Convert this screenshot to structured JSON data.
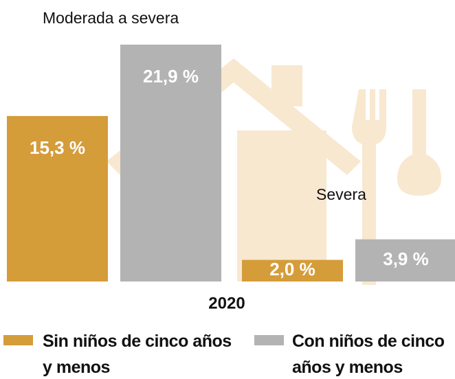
{
  "chart_data": {
    "type": "bar",
    "categories": [
      "Moderada a severa",
      "Severa"
    ],
    "series": [
      {
        "name": "Sin niños de cinco años y menos",
        "color": "#d59c3a",
        "values": [
          15.3,
          2.0
        ],
        "value_labels": [
          "15,3 %",
          "2,0 %"
        ]
      },
      {
        "name": "Con niños de cinco años y menos",
        "color": "#b3b3b3",
        "values": [
          21.9,
          3.9
        ],
        "value_labels": [
          "21,9 %",
          "3,9 %"
        ]
      }
    ],
    "x_label": "2020"
  }
}
